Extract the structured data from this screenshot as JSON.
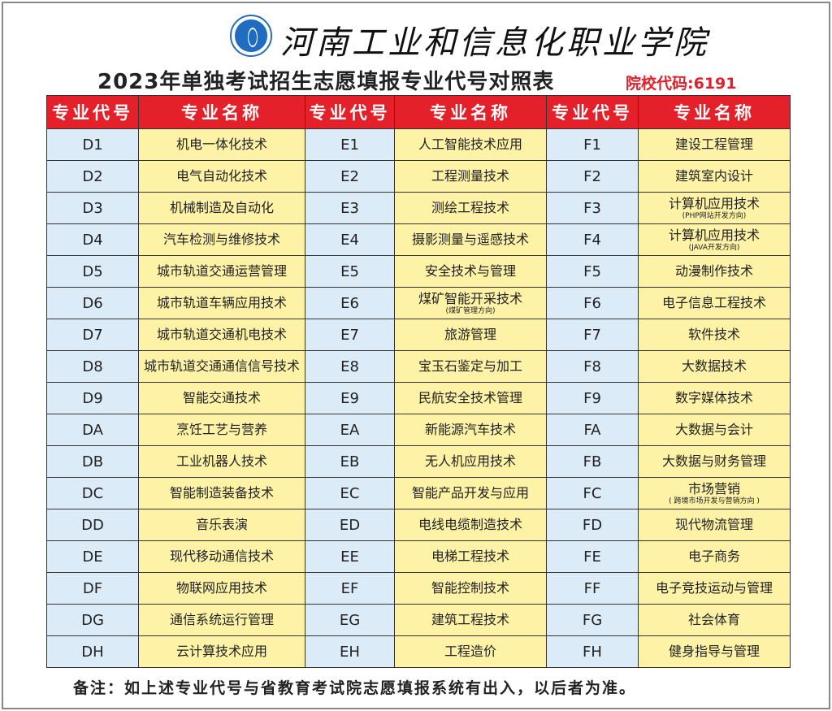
{
  "header": {
    "school_name": "河南工业和信息化职业学院",
    "title": "2023年单独考试招生志愿填报专业代号对照表",
    "school_code": "院校代码:6191"
  },
  "table": {
    "headers": [
      "专业代号",
      "专业名称",
      "专业代号",
      "专业名称",
      "专业代号",
      "专业名称"
    ],
    "rows": [
      [
        [
          "D1",
          "机电一体化技术",
          ""
        ],
        [
          "E1",
          "人工智能技术应用",
          ""
        ],
        [
          "F1",
          "建设工程管理",
          ""
        ]
      ],
      [
        [
          "D2",
          "电气自动化技术",
          ""
        ],
        [
          "E2",
          "工程测量技术",
          ""
        ],
        [
          "F2",
          "建筑室内设计",
          ""
        ]
      ],
      [
        [
          "D3",
          "机械制造及自动化",
          ""
        ],
        [
          "E3",
          "测绘工程技术",
          ""
        ],
        [
          "F3",
          "计算机应用技术",
          "(PHP网站开发方向)"
        ]
      ],
      [
        [
          "D4",
          "汽车检测与维修技术",
          ""
        ],
        [
          "E4",
          "摄影测量与遥感技术",
          ""
        ],
        [
          "F4",
          "计算机应用技术",
          "(JAVA开发方向)"
        ]
      ],
      [
        [
          "D5",
          "城市轨道交通运营管理",
          ""
        ],
        [
          "E5",
          "安全技术与管理",
          ""
        ],
        [
          "F5",
          "动漫制作技术",
          ""
        ]
      ],
      [
        [
          "D6",
          "城市轨道车辆应用技术",
          ""
        ],
        [
          "E6",
          "煤矿智能开采技术",
          "(煤矿管理方向)"
        ],
        [
          "F6",
          "电子信息工程技术",
          ""
        ]
      ],
      [
        [
          "D7",
          "城市轨道交通机电技术",
          ""
        ],
        [
          "E7",
          "旅游管理",
          ""
        ],
        [
          "F7",
          "软件技术",
          ""
        ]
      ],
      [
        [
          "D8",
          "城市轨道交通通信信号技术",
          ""
        ],
        [
          "E8",
          "宝玉石鉴定与加工",
          ""
        ],
        [
          "F8",
          "大数据技术",
          ""
        ]
      ],
      [
        [
          "D9",
          "智能交通技术",
          ""
        ],
        [
          "E9",
          "民航安全技术管理",
          ""
        ],
        [
          "F9",
          "数字媒体技术",
          ""
        ]
      ],
      [
        [
          "DA",
          "烹饪工艺与营养",
          ""
        ],
        [
          "EA",
          "新能源汽车技术",
          ""
        ],
        [
          "FA",
          "大数据与会计",
          ""
        ]
      ],
      [
        [
          "DB",
          "工业机器人技术",
          ""
        ],
        [
          "EB",
          "无人机应用技术",
          ""
        ],
        [
          "FB",
          "大数据与财务管理",
          ""
        ]
      ],
      [
        [
          "DC",
          "智能制造装备技术",
          ""
        ],
        [
          "EC",
          "智能产品开发与应用",
          ""
        ],
        [
          "FC",
          "市场营销",
          "( 跨境市场开发与营销方向 )"
        ]
      ],
      [
        [
          "DD",
          "音乐表演",
          ""
        ],
        [
          "ED",
          "电线电缆制造技术",
          ""
        ],
        [
          "FD",
          "现代物流管理",
          ""
        ]
      ],
      [
        [
          "DE",
          "现代移动通信技术",
          ""
        ],
        [
          "EE",
          "电梯工程技术",
          ""
        ],
        [
          "FE",
          "电子商务",
          ""
        ]
      ],
      [
        [
          "DF",
          "物联网应用技术",
          ""
        ],
        [
          "EF",
          "智能控制技术",
          ""
        ],
        [
          "FF",
          "电子竞技运动与管理",
          ""
        ]
      ],
      [
        [
          "DG",
          "通信系统运行管理",
          ""
        ],
        [
          "EG",
          "建筑工程技术",
          ""
        ],
        [
          "FG",
          "社会体育",
          ""
        ]
      ],
      [
        [
          "DH",
          "云计算技术应用",
          ""
        ],
        [
          "EH",
          "工程造价",
          ""
        ],
        [
          "FH",
          "健身指导与管理",
          ""
        ]
      ]
    ]
  },
  "footer": {
    "note": "备注：如上述专业代号与省教育考试院志愿填报系统有出入，以后者为准。"
  },
  "colors": {
    "header_bg": "#e4212b",
    "code_bg": "#dcebf8",
    "name_bg": "#fdf2a6",
    "school_code": "#e0202a"
  }
}
